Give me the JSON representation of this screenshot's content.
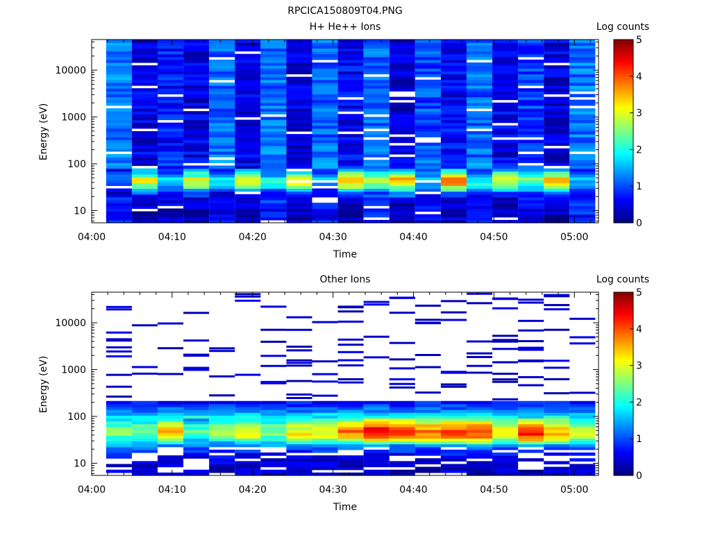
{
  "figure_title": "RPCICA150809T04.PNG",
  "colormap": [
    "#000080",
    "#0000ff",
    "#0080ff",
    "#00ffff",
    "#80ff80",
    "#ffff00",
    "#ff8000",
    "#ff0000",
    "#800000"
  ],
  "chart_data": [
    {
      "type": "heatmap",
      "title": "H+ He++ Ions",
      "xlabel": "Time",
      "ylabel": "Energy (eV)",
      "yscale": "log",
      "ylim": [
        5.5,
        45000
      ],
      "xlim": [
        "04:00",
        "05:03"
      ],
      "x_ticks": [
        "04:00",
        "04:10",
        "04:20",
        "04:30",
        "04:40",
        "04:50",
        "05:00"
      ],
      "y_ticks": [
        10,
        100,
        1000,
        10000
      ],
      "y_tick_labels": [
        "10",
        "100",
        "1000",
        "10000"
      ],
      "colorbar_label": "Log counts",
      "colorbar_range": [
        0,
        5
      ],
      "colorbar_ticks": [
        "0",
        "1",
        "2",
        "3",
        "4",
        "5"
      ],
      "time_bins_start_min": [
        1.8,
        5.0,
        8.2,
        11.4,
        14.6,
        17.8,
        21.0,
        24.2,
        27.4,
        30.6,
        33.8,
        37.0,
        40.2,
        43.4,
        46.6,
        49.8,
        53.0,
        56.2,
        59.4
      ],
      "time_bin_width_min": 3.2,
      "profile_energy_eV": [
        6,
        10,
        15,
        20,
        25,
        30,
        38,
        48,
        60,
        80,
        100,
        200,
        500,
        1000,
        5000,
        10000,
        40000
      ],
      "profile_log_counts": [
        0.6,
        0.6,
        0.7,
        0.8,
        1.0,
        1.9,
        2.7,
        2.9,
        2.0,
        1.3,
        1.1,
        1.0,
        1.0,
        1.0,
        1.0,
        1.0,
        1.0
      ],
      "bin_peak_scale": [
        0.45,
        1.05,
        0.55,
        1.05,
        0.6,
        1.15,
        0.7,
        1.1,
        0.55,
        1.2,
        1.0,
        1.25,
        0.55,
        1.35,
        0.7,
        1.1,
        0.85,
        1.15,
        0.55
      ],
      "bin_background_scale": [
        1.2,
        0.45,
        0.7,
        0.5,
        1.1,
        0.45,
        1.15,
        0.4,
        1.1,
        0.6,
        1.1,
        0.45,
        1.0,
        0.6,
        1.1,
        0.5,
        0.9,
        0.45,
        1.2
      ],
      "random_seed": 17,
      "missing_fraction": 0.05
    },
    {
      "type": "heatmap",
      "title": "Other Ions",
      "xlabel": "Time",
      "ylabel": "Energy (eV)",
      "yscale": "log",
      "ylim": [
        5.5,
        45000
      ],
      "xlim": [
        "04:00",
        "05:03"
      ],
      "x_ticks": [
        "04:00",
        "04:10",
        "04:20",
        "04:30",
        "04:40",
        "04:50",
        "05:00"
      ],
      "y_ticks": [
        10,
        100,
        1000,
        10000
      ],
      "y_tick_labels": [
        "10",
        "100",
        "1000",
        "10000"
      ],
      "colorbar_label": "Log counts",
      "colorbar_range": [
        0,
        5
      ],
      "colorbar_ticks": [
        "0",
        "1",
        "2",
        "3",
        "4",
        "5"
      ],
      "time_bins_start_min": [
        1.8,
        5.0,
        8.2,
        11.4,
        14.6,
        17.8,
        21.0,
        24.2,
        27.4,
        30.6,
        33.8,
        37.0,
        40.2,
        43.4,
        46.6,
        49.8,
        53.0,
        56.2,
        59.4
      ],
      "time_bin_width_min": 3.2,
      "profile_energy_eV": [
        6,
        10,
        15,
        20,
        25,
        30,
        38,
        48,
        60,
        80,
        100,
        130,
        160,
        200
      ],
      "profile_log_counts": [
        0.3,
        0.4,
        0.6,
        0.9,
        1.4,
        2.2,
        3.0,
        3.2,
        2.9,
        2.3,
        1.8,
        1.3,
        1.0,
        0.7
      ],
      "bin_peak_scale": [
        0.8,
        0.8,
        1.05,
        0.7,
        0.85,
        1.0,
        0.8,
        1.0,
        1.0,
        1.2,
        1.4,
        1.3,
        1.2,
        1.25,
        1.3,
        1.0,
        1.35,
        1.1,
        0.95
      ],
      "low_energy_gaps": true,
      "sparse_line_count_range": [
        3,
        12
      ],
      "sparse_line_max_eV": 42000,
      "random_seed": 41
    }
  ]
}
